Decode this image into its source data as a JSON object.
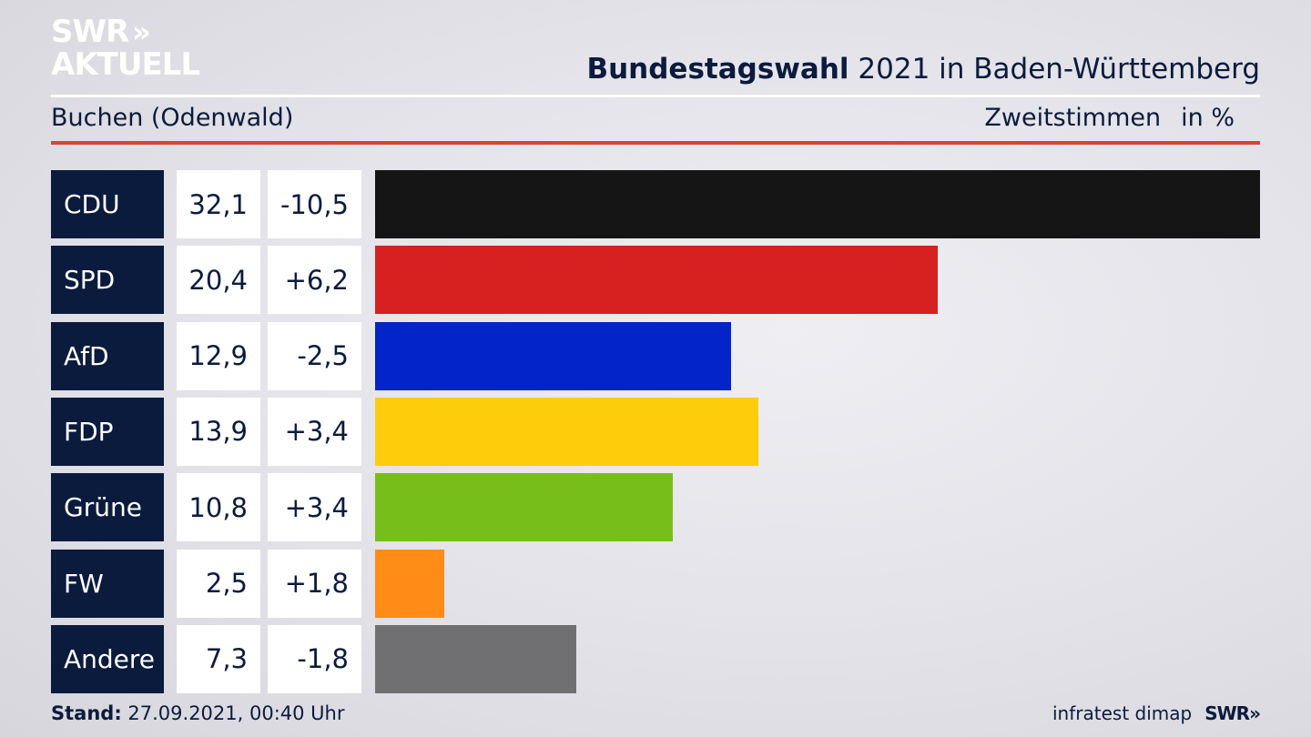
{
  "header": {
    "logo_line1": "SWR",
    "logo_chevrons": "»",
    "logo_line2": "AKTUELL",
    "title_bold": "Bundestagswahl",
    "title_rest": " 2021 in Baden-Württemberg",
    "location": "Buchen (Odenwald)",
    "measure": "Zweitstimmen",
    "unit": "in %"
  },
  "chart_data": {
    "type": "bar",
    "orientation": "horizontal",
    "title": "Bundestagswahl 2021 in Baden-Württemberg",
    "subtitle": "Buchen (Odenwald)",
    "xlabel": "Zweitstimmen in %",
    "categories": [
      "CDU",
      "SPD",
      "AfD",
      "FDP",
      "Grüne",
      "FW",
      "Andere"
    ],
    "values": [
      32.1,
      20.4,
      12.9,
      13.9,
      10.8,
      2.5,
      7.3
    ],
    "value_labels": [
      "32,1",
      "20,4",
      "12,9",
      "13,9",
      "10,8",
      "2,5",
      "7,3"
    ],
    "changes": [
      -10.5,
      6.2,
      -2.5,
      3.4,
      3.4,
      1.8,
      -1.8
    ],
    "change_labels": [
      "-10,5",
      "+6,2",
      "-2,5",
      "+3,4",
      "+3,4",
      "+1,8",
      "-1,8"
    ],
    "colors": [
      "#151515",
      "#d62120",
      "#0224c9",
      "#fdcc0a",
      "#78be1a",
      "#ff8c16",
      "#707072"
    ],
    "xlim": [
      0,
      32.1
    ]
  },
  "footer": {
    "stand_label": "Stand:",
    "stand_value": " 27.09.2021, 00:40 Uhr",
    "source": "infratest dimap",
    "brand": "SWR",
    "brand_chevrons": "»"
  }
}
